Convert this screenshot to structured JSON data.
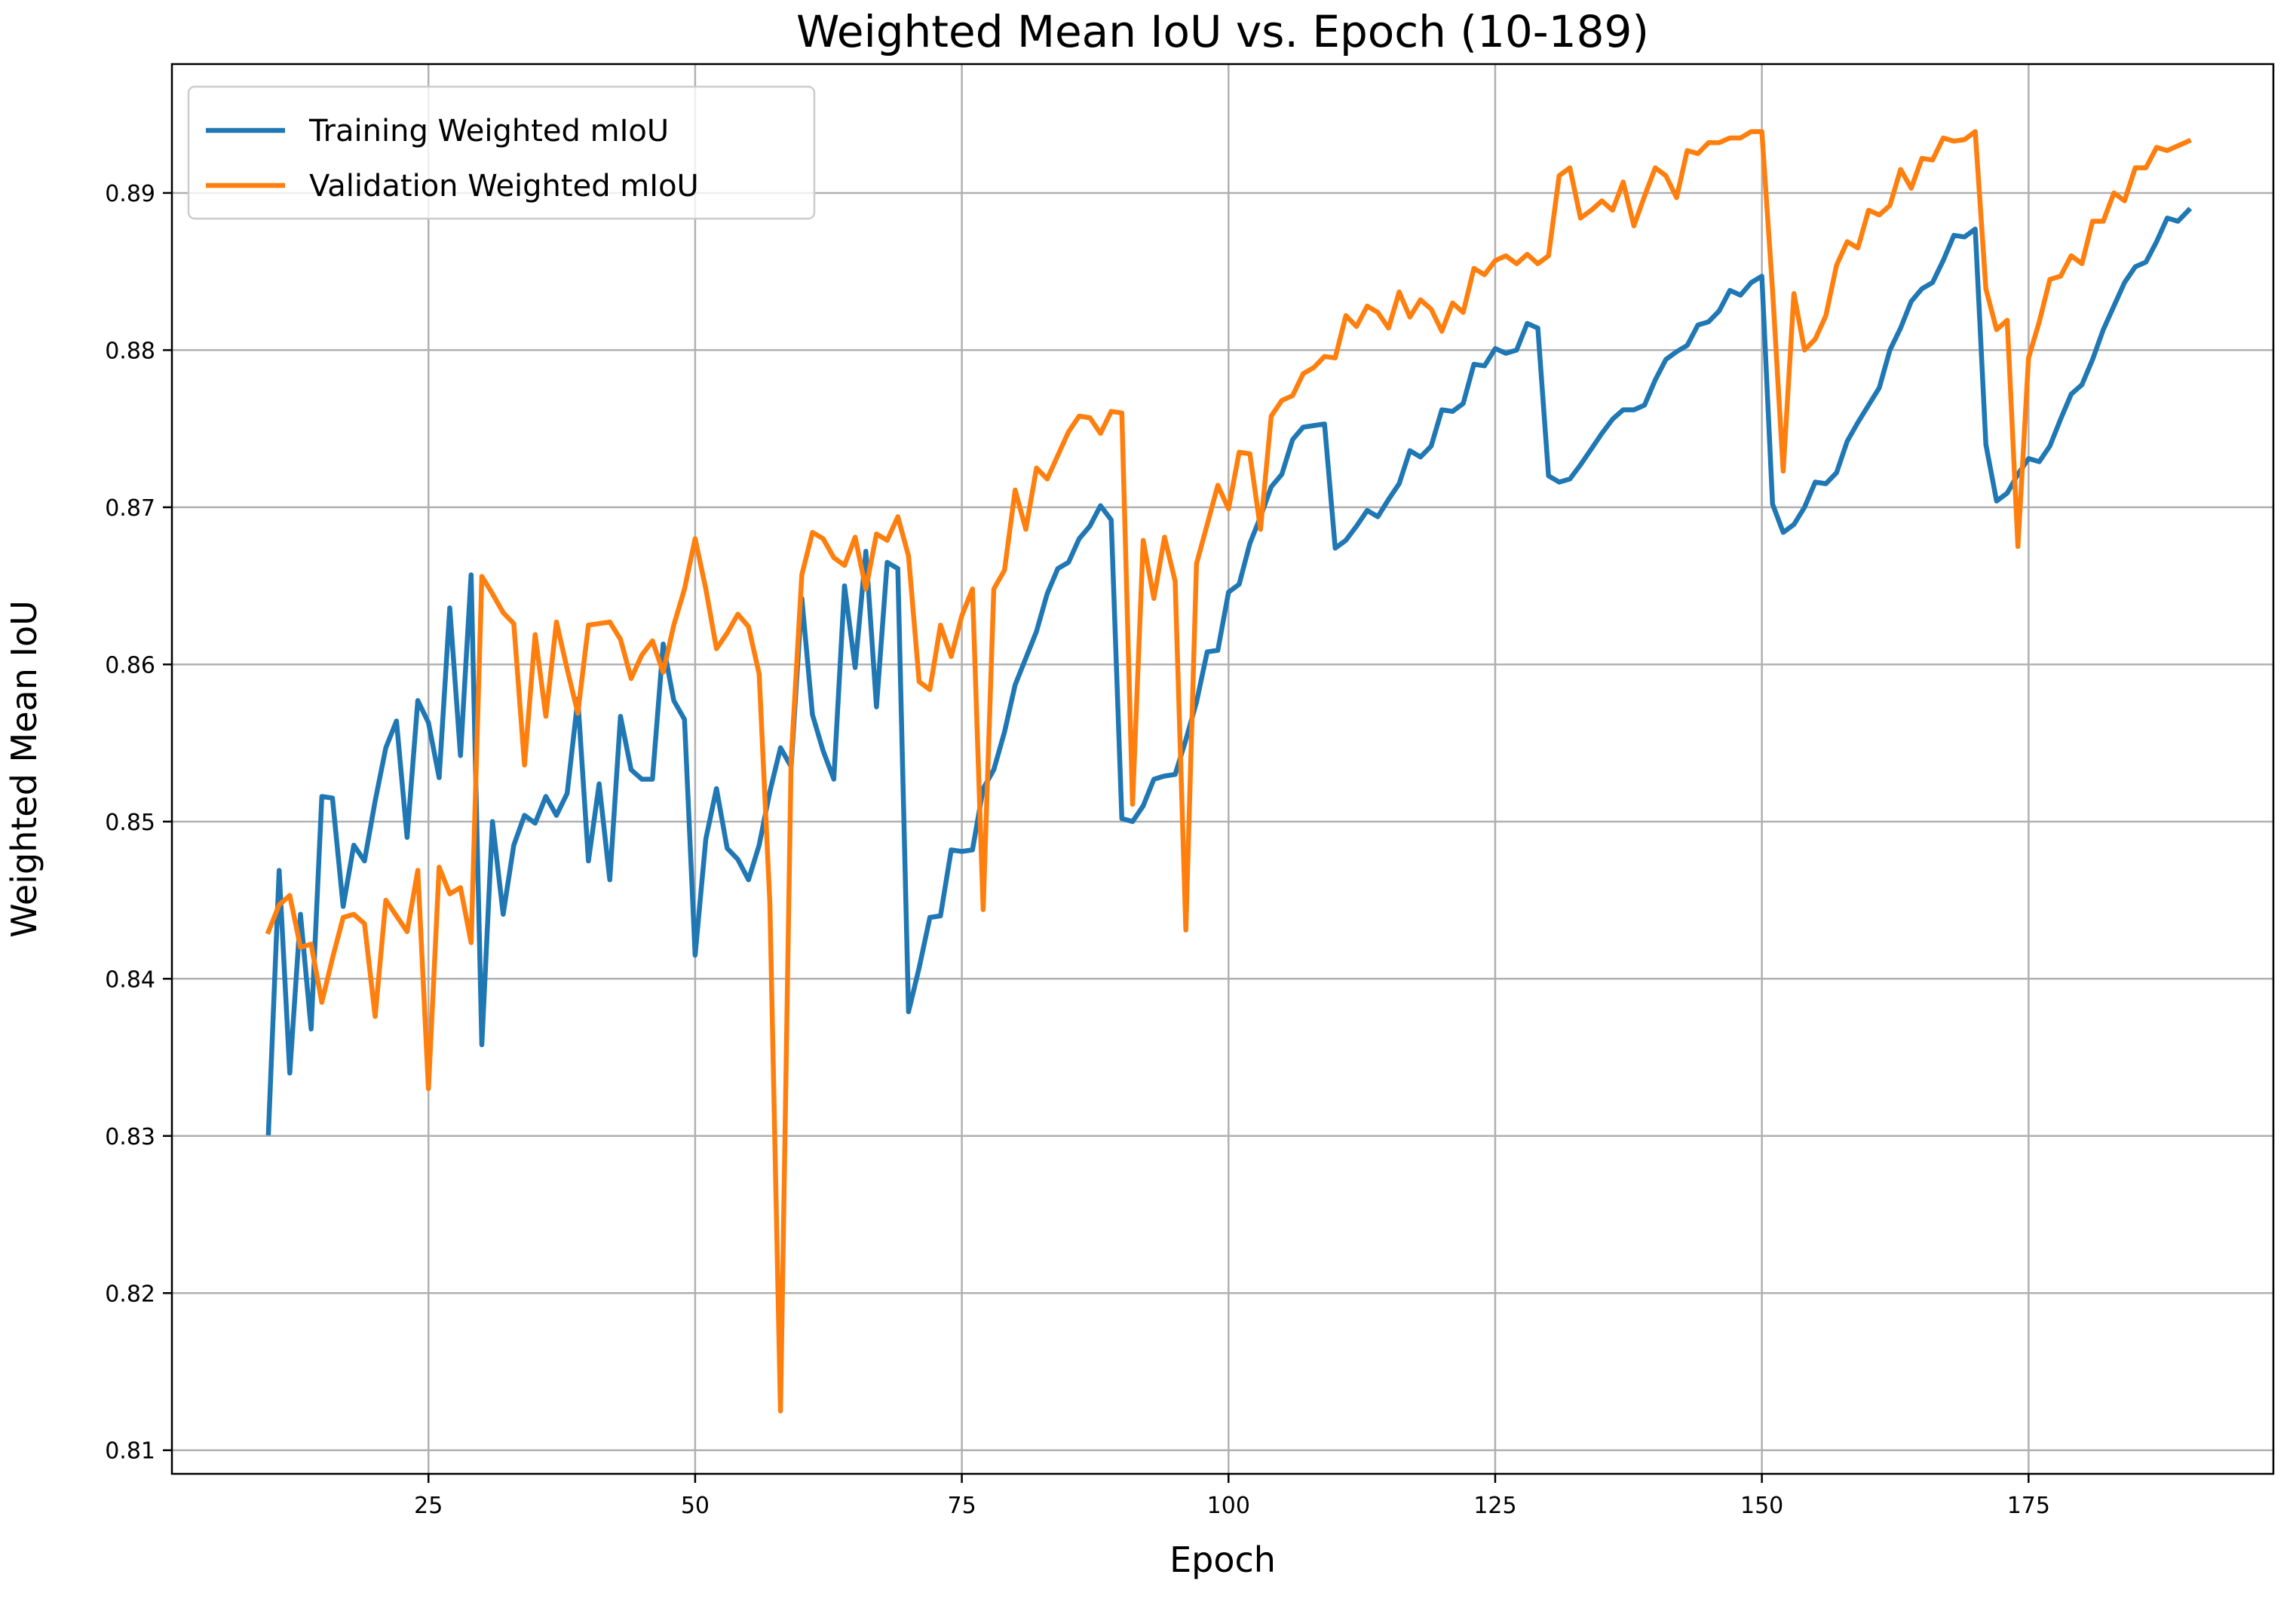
{
  "chart_data": {
    "type": "line",
    "title": "Weighted Mean IoU vs. Epoch (10-189)",
    "xlabel": "Epoch",
    "ylabel": "Weighted Mean IoU",
    "xlim": [
      0.95,
      197.95
    ],
    "ylim": [
      0.8085,
      0.8982
    ],
    "xticks": [
      25,
      50,
      75,
      100,
      125,
      150,
      175
    ],
    "yticks": [
      0.81,
      0.82,
      0.83,
      0.84,
      0.85,
      0.86,
      0.87,
      0.88,
      0.89
    ],
    "grid": true,
    "legend": "top-left",
    "x_start": 10,
    "series": [
      {
        "name": "Training Weighted mIoU",
        "color": "#1f77b4",
        "values": [
          0.8302,
          0.8469,
          0.834,
          0.8441,
          0.8368,
          0.8516,
          0.8515,
          0.8446,
          0.8485,
          0.8475,
          0.8513,
          0.8547,
          0.8564,
          0.849,
          0.8577,
          0.8563,
          0.8528,
          0.8636,
          0.8542,
          0.8657,
          0.8358,
          0.85,
          0.8441,
          0.8485,
          0.8504,
          0.8499,
          0.8516,
          0.8504,
          0.8518,
          0.8578,
          0.8475,
          0.8524,
          0.8463,
          0.8567,
          0.8533,
          0.8527,
          0.8527,
          0.8613,
          0.8577,
          0.8565,
          0.8415,
          0.8489,
          0.8521,
          0.8483,
          0.8476,
          0.8463,
          0.8485,
          0.8519,
          0.8547,
          0.8535,
          0.8642,
          0.8568,
          0.8545,
          0.8527,
          0.865,
          0.8598,
          0.8672,
          0.8573,
          0.8665,
          0.8661,
          0.8379,
          0.8407,
          0.8439,
          0.844,
          0.8482,
          0.8481,
          0.8482,
          0.8521,
          0.8533,
          0.8557,
          0.8587,
          0.8604,
          0.8621,
          0.8645,
          0.8661,
          0.8665,
          0.868,
          0.8688,
          0.8701,
          0.8692,
          0.8502,
          0.85,
          0.851,
          0.8527,
          0.8529,
          0.853,
          0.8552,
          0.8576,
          0.8608,
          0.8609,
          0.8646,
          0.8651,
          0.8677,
          0.8694,
          0.8713,
          0.8721,
          0.8743,
          0.8751,
          0.8752,
          0.8753,
          0.8674,
          0.8679,
          0.8688,
          0.8698,
          0.8694,
          0.8705,
          0.8715,
          0.8736,
          0.8732,
          0.8739,
          0.8762,
          0.8761,
          0.8766,
          0.8791,
          0.879,
          0.8801,
          0.8798,
          0.88,
          0.8817,
          0.8814,
          0.872,
          0.8716,
          0.8718,
          0.8727,
          0.8737,
          0.8747,
          0.8756,
          0.8762,
          0.8762,
          0.8765,
          0.8781,
          0.8794,
          0.8799,
          0.8803,
          0.8816,
          0.8818,
          0.8825,
          0.8838,
          0.8835,
          0.8843,
          0.8847,
          0.8702,
          0.8684,
          0.8689,
          0.87,
          0.8716,
          0.8715,
          0.8722,
          0.8742,
          0.8754,
          0.8765,
          0.8776,
          0.88,
          0.8814,
          0.8831,
          0.8839,
          0.8843,
          0.8857,
          0.8873,
          0.8872,
          0.8877,
          0.874,
          0.8704,
          0.8709,
          0.8721,
          0.8731,
          0.8729,
          0.8739,
          0.8756,
          0.8772,
          0.8778,
          0.8794,
          0.8813,
          0.8828,
          0.8843,
          0.8853,
          0.8856,
          0.8869,
          0.8884,
          0.8882,
          0.8889
        ]
      },
      {
        "name": "Validation Weighted mIoU",
        "color": "#ff7f0e",
        "values": [
          0.843,
          0.8447,
          0.8453,
          0.842,
          0.8422,
          0.8385,
          0.8413,
          0.8439,
          0.8441,
          0.8435,
          0.8376,
          0.845,
          0.844,
          0.843,
          0.8469,
          0.833,
          0.8471,
          0.8454,
          0.8458,
          0.8423,
          0.8656,
          0.8645,
          0.8633,
          0.8626,
          0.8536,
          0.8619,
          0.8567,
          0.8627,
          0.8597,
          0.8569,
          0.8625,
          0.8626,
          0.8627,
          0.8616,
          0.8591,
          0.8606,
          0.8615,
          0.8595,
          0.8625,
          0.8648,
          0.868,
          0.8648,
          0.861,
          0.862,
          0.8632,
          0.8624,
          0.8594,
          0.8448,
          0.8125,
          0.8539,
          0.8657,
          0.8684,
          0.868,
          0.8668,
          0.8663,
          0.8681,
          0.8648,
          0.8683,
          0.8679,
          0.8694,
          0.8669,
          0.8589,
          0.8584,
          0.8625,
          0.8605,
          0.8631,
          0.8648,
          0.8444,
          0.8648,
          0.866,
          0.8711,
          0.8686,
          0.8725,
          0.8718,
          0.8733,
          0.8748,
          0.8758,
          0.8757,
          0.8747,
          0.8761,
          0.876,
          0.8511,
          0.8679,
          0.8642,
          0.8681,
          0.8653,
          0.8431,
          0.8664,
          0.8689,
          0.8714,
          0.8699,
          0.8735,
          0.8734,
          0.8686,
          0.8758,
          0.8768,
          0.8771,
          0.8785,
          0.8789,
          0.8796,
          0.8795,
          0.8822,
          0.8815,
          0.8828,
          0.8824,
          0.8814,
          0.8837,
          0.8821,
          0.8832,
          0.8826,
          0.8812,
          0.883,
          0.8824,
          0.8852,
          0.8848,
          0.8857,
          0.886,
          0.8855,
          0.8861,
          0.8855,
          0.886,
          0.8911,
          0.8916,
          0.8884,
          0.8889,
          0.8895,
          0.8889,
          0.8907,
          0.8879,
          0.8898,
          0.8916,
          0.8911,
          0.8897,
          0.8927,
          0.8925,
          0.8932,
          0.8932,
          0.8935,
          0.8935,
          0.8939,
          0.8939,
          0.8838,
          0.8723,
          0.8836,
          0.88,
          0.8807,
          0.8822,
          0.8854,
          0.8869,
          0.8865,
          0.8889,
          0.8886,
          0.8892,
          0.8915,
          0.8903,
          0.8922,
          0.8921,
          0.8935,
          0.8933,
          0.8934,
          0.8939,
          0.8839,
          0.8813,
          0.8819,
          0.8675,
          0.8795,
          0.8818,
          0.8845,
          0.8847,
          0.886,
          0.8855,
          0.8882,
          0.8882,
          0.89,
          0.8895,
          0.8916,
          0.8916,
          0.8929,
          0.8927,
          0.893,
          0.8933
        ]
      }
    ]
  }
}
